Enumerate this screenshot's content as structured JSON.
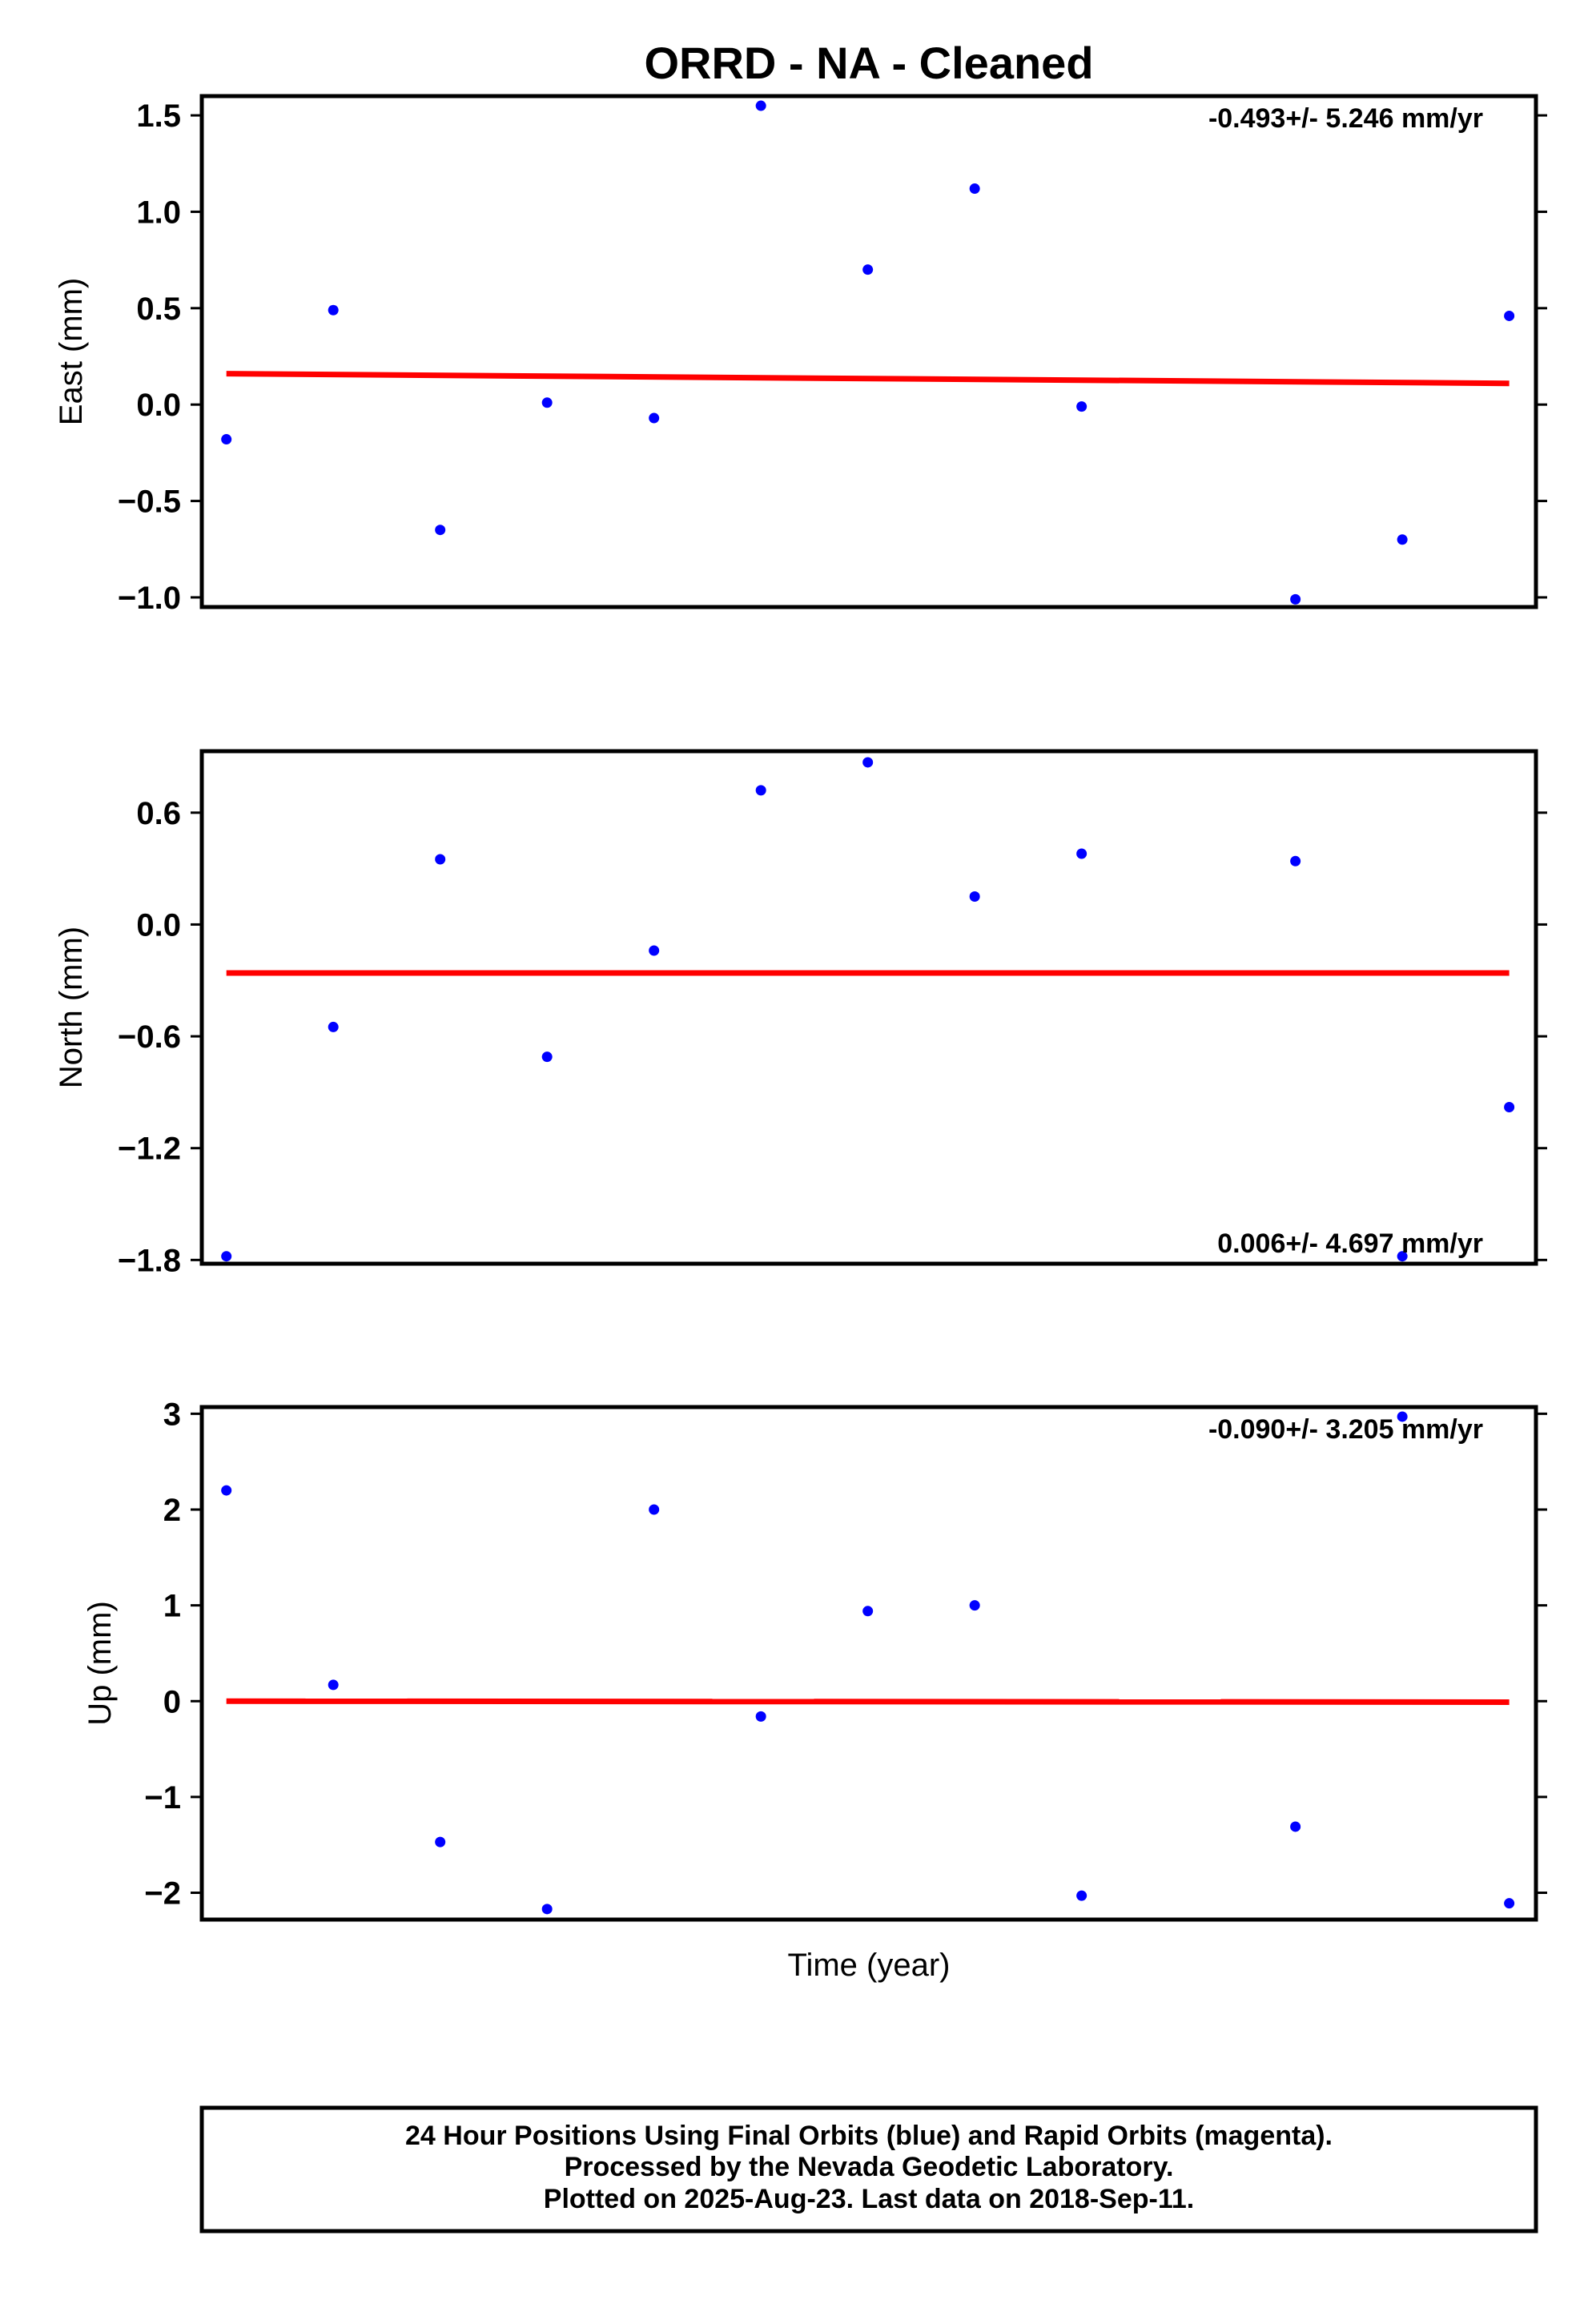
{
  "chart_data": [
    {
      "type": "scatter",
      "title": "ORRD  - NA - Cleaned",
      "ylabel": "East (mm)",
      "xlabel": "",
      "ylim": [
        -1.05,
        1.6
      ],
      "yticks": [
        1.5,
        1.0,
        0.5,
        0.0,
        -0.5,
        -1.0
      ],
      "ytick_labels": [
        "1.5",
        "1.0",
        "0.5",
        "0.0",
        "−0.5",
        "−1.0"
      ],
      "rate_text": "-0.493+/- 5.246 mm/yr",
      "rate_position": "top-right",
      "grid": false,
      "series": [
        {
          "color": "#0000ff",
          "x": [
            1,
            2,
            3,
            4,
            5,
            6,
            7,
            8,
            9,
            10,
            11,
            12,
            13
          ],
          "y": [
            -0.18,
            0.49,
            -0.65,
            0.01,
            -0.07,
            1.55,
            0.7,
            1.12,
            -0.01,
            null,
            -1.01,
            -0.7,
            0.46
          ]
        }
      ],
      "trend": {
        "color": "#ff0000",
        "y_start": 0.16,
        "y_end": 0.11
      }
    },
    {
      "type": "scatter",
      "ylabel": "North (mm)",
      "xlabel": "",
      "ylim": [
        -1.82,
        0.93
      ],
      "yticks": [
        0.6,
        0.0,
        -0.6,
        -1.2,
        -1.8
      ],
      "ytick_labels": [
        "0.6",
        "0.0",
        "−0.6",
        "−1.2",
        "−1.8"
      ],
      "rate_text": "0.006+/- 4.697 mm/yr",
      "rate_position": "bottom-right",
      "grid": false,
      "series": [
        {
          "color": "#0000ff",
          "x": [
            1,
            2,
            3,
            4,
            5,
            6,
            7,
            8,
            9,
            10,
            11,
            12,
            13
          ],
          "y": [
            -1.78,
            -0.55,
            0.35,
            -0.71,
            -0.14,
            0.72,
            0.87,
            0.15,
            0.38,
            null,
            0.34,
            -1.78,
            -0.98
          ]
        }
      ],
      "trend": {
        "color": "#ff0000",
        "y_start": -0.26,
        "y_end": -0.26
      }
    },
    {
      "type": "scatter",
      "ylabel": "Up (mm)",
      "xlabel": "Time (year)",
      "ylim": [
        -2.28,
        3.07
      ],
      "yticks": [
        3,
        2,
        1,
        0,
        -1,
        -2
      ],
      "ytick_labels": [
        "3",
        "2",
        "1",
        "0",
        "−1",
        "−2"
      ],
      "rate_text": "-0.090+/- 3.205 mm/yr",
      "rate_position": "top-right",
      "grid": false,
      "series": [
        {
          "color": "#0000ff",
          "x": [
            1,
            2,
            3,
            4,
            5,
            6,
            7,
            8,
            9,
            10,
            11,
            12,
            13
          ],
          "y": [
            2.2,
            0.17,
            -1.47,
            -2.17,
            2.0,
            -0.16,
            0.94,
            1.0,
            -2.03,
            null,
            -1.31,
            2.97,
            -2.11
          ]
        }
      ],
      "trend": {
        "color": "#ff0000",
        "y_start": 0.0,
        "y_end": -0.01
      }
    }
  ],
  "footer": {
    "line1": "24 Hour Positions Using Final Orbits (blue) and Rapid Orbits (magenta).",
    "line2": "Processed by the Nevada Geodetic Laboratory.",
    "line3": "Plotted on 2025-Aug-23. Last data on 2018-Sep-11."
  }
}
